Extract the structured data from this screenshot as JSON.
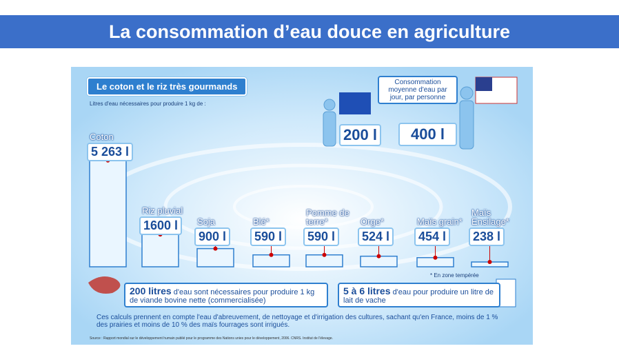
{
  "header": {
    "title": "La consommation d’eau douce en agriculture"
  },
  "chart_data": {
    "type": "bar",
    "title": "Le coton et le riz très gourmands",
    "subtitle": "Litres d'eau nécessaires pour produire 1 kg de :",
    "categories": [
      "Coton",
      "Riz pluvial",
      "Soja",
      "Blé*",
      "Pomme de terre*",
      "Orge*",
      "Maïs grain*",
      "Maïs Ensilage*"
    ],
    "values": [
      5263,
      1600,
      900,
      590,
      590,
      524,
      454,
      238
    ],
    "value_labels": [
      "5 263 l",
      "1600 l",
      "900 l",
      "590 l",
      "590 l",
      "524 l",
      "454 l",
      "238 l"
    ],
    "color": "#eaf6ff",
    "annotation": "* En zone tempérée"
  },
  "consumption": {
    "label": "Consommation moyenne d'eau par jour, par personne",
    "europe": "200 l",
    "usa": "400 l"
  },
  "meat": {
    "bold": "200 litres",
    "text": "d'eau sont nécessaires pour produire 1 kg de viande bovine nette (commercialisée)"
  },
  "milk": {
    "bold": "5 à 6 litres",
    "text": "d'eau pour produire un litre de lait de vache"
  },
  "note": "Ces calculs prennent en compte l'eau d'abreuvement, de nettoyage et d'irrigation des cultures, sachant qu'en France, moins de 1 % des prairies et moins de 10 % des maïs fourrages sont irrigués.",
  "source": "Source : Rapport mondial sur le développement humain publié pour le programme des Nations unies pour le développement, 2006. CNRS. Institut de l'élevage."
}
